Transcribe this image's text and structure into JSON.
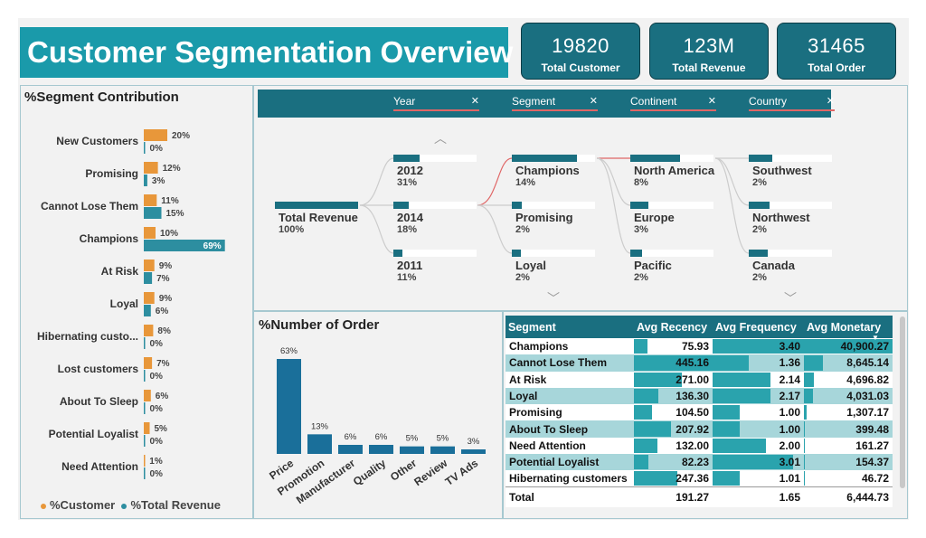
{
  "title": "Customer Segmentation Overview",
  "kpis": [
    {
      "value": "19820",
      "label": "Total Customer"
    },
    {
      "value": "123M",
      "label": "Total Revenue"
    },
    {
      "value": "31465",
      "label": "Total Order"
    }
  ],
  "segment_contribution": {
    "title": "%Segment Contribution",
    "legend": [
      "%Customer",
      "%Total Revenue"
    ],
    "colors": {
      "customer": "#e8973a",
      "revenue": "#2d8ea0"
    },
    "rows": [
      {
        "label": "New Customers",
        "customer": 20,
        "revenue": 0,
        "customer_label": "20%",
        "revenue_label": "0%"
      },
      {
        "label": "Promising",
        "customer": 12,
        "revenue": 3,
        "customer_label": "12%",
        "revenue_label": "3%"
      },
      {
        "label": "Cannot Lose Them",
        "customer": 11,
        "revenue": 15,
        "customer_label": "11%",
        "revenue_label": "15%"
      },
      {
        "label": "Champions",
        "customer": 10,
        "revenue": 69,
        "customer_label": "10%",
        "revenue_label": "69%"
      },
      {
        "label": "At Risk",
        "customer": 9,
        "revenue": 7,
        "customer_label": "9%",
        "revenue_label": "7%"
      },
      {
        "label": "Loyal",
        "customer": 9,
        "revenue": 6,
        "customer_label": "9%",
        "revenue_label": "6%"
      },
      {
        "label": "Hibernating custo...",
        "customer": 8,
        "revenue": 0,
        "customer_label": "8%",
        "revenue_label": "0%"
      },
      {
        "label": "Lost customers",
        "customer": 7,
        "revenue": 0,
        "customer_label": "7%",
        "revenue_label": "0%"
      },
      {
        "label": "About To Sleep",
        "customer": 6,
        "revenue": 0,
        "customer_label": "6%",
        "revenue_label": "0%"
      },
      {
        "label": "Potential Loyalist",
        "customer": 5,
        "revenue": 0,
        "customer_label": "5%",
        "revenue_label": "0%"
      },
      {
        "label": "Need Attention",
        "customer": 1,
        "revenue": 0,
        "customer_label": "1%",
        "revenue_label": "0%"
      }
    ]
  },
  "filters": [
    "Year",
    "Segment",
    "Continent",
    "Country"
  ],
  "decomposition_tree": {
    "root": {
      "name": "Total Revenue",
      "pct": "100%",
      "fill": 1.0
    },
    "year": [
      {
        "name": "2012",
        "pct": "31%",
        "fill": 0.31
      },
      {
        "name": "2014",
        "pct": "18%",
        "fill": 0.18
      },
      {
        "name": "2011",
        "pct": "11%",
        "fill": 0.11
      }
    ],
    "segment": [
      {
        "name": "Champions",
        "pct": "14%",
        "fill": 0.78
      },
      {
        "name": "Promising",
        "pct": "2%",
        "fill": 0.12
      },
      {
        "name": "Loyal",
        "pct": "2%",
        "fill": 0.11
      }
    ],
    "continent": [
      {
        "name": "North America",
        "pct": "8%",
        "fill": 0.6
      },
      {
        "name": "Europe",
        "pct": "3%",
        "fill": 0.22
      },
      {
        "name": "Pacific",
        "pct": "2%",
        "fill": 0.14
      }
    ],
    "country": [
      {
        "name": "Southwest",
        "pct": "2%",
        "fill": 0.28
      },
      {
        "name": "Northwest",
        "pct": "2%",
        "fill": 0.25
      },
      {
        "name": "Canada",
        "pct": "2%",
        "fill": 0.23
      }
    ]
  },
  "chart_data": {
    "type": "bar",
    "title": "%Number of Order",
    "categories": [
      "Price",
      "Promotion",
      "Manufacturer",
      "Quality",
      "Other",
      "Review",
      "TV Ads"
    ],
    "values": [
      63,
      13,
      6,
      6,
      5,
      5,
      3
    ],
    "value_labels": [
      "63%",
      "13%",
      "6%",
      "6%",
      "5%",
      "5%",
      "3%"
    ],
    "bar_color": "#1a6f9a",
    "ylim": [
      0,
      63
    ]
  },
  "segment_table": {
    "columns": [
      "Segment",
      "Avg Recency",
      "Avg Frequency",
      "Avg Monetary"
    ],
    "rows": [
      {
        "segment": "Champions",
        "recency": "75.93",
        "frequency": "3.40",
        "monetary": "40,900.27",
        "r": 75.93,
        "f": 3.4,
        "m": 40900.27
      },
      {
        "segment": "Cannot Lose Them",
        "recency": "445.16",
        "frequency": "1.36",
        "monetary": "8,645.14",
        "r": 445.16,
        "f": 1.36,
        "m": 8645.14
      },
      {
        "segment": "At Risk",
        "recency": "271.00",
        "frequency": "2.14",
        "monetary": "4,696.82",
        "r": 271.0,
        "f": 2.14,
        "m": 4696.82
      },
      {
        "segment": "Loyal",
        "recency": "136.30",
        "frequency": "2.17",
        "monetary": "4,031.03",
        "r": 136.3,
        "f": 2.17,
        "m": 4031.03
      },
      {
        "segment": "Promising",
        "recency": "104.50",
        "frequency": "1.00",
        "monetary": "1,307.17",
        "r": 104.5,
        "f": 1.0,
        "m": 1307.17
      },
      {
        "segment": "About To Sleep",
        "recency": "207.92",
        "frequency": "1.00",
        "monetary": "399.48",
        "r": 207.92,
        "f": 1.0,
        "m": 399.48
      },
      {
        "segment": "Need Attention",
        "recency": "132.00",
        "frequency": "2.00",
        "monetary": "161.27",
        "r": 132.0,
        "f": 2.0,
        "m": 161.27
      },
      {
        "segment": "Potential Loyalist",
        "recency": "82.23",
        "frequency": "3.01",
        "monetary": "154.37",
        "r": 82.23,
        "f": 3.01,
        "m": 154.37
      },
      {
        "segment": "Hibernating customers",
        "recency": "247.36",
        "frequency": "1.01",
        "monetary": "46.72",
        "r": 247.36,
        "f": 1.01,
        "m": 46.72
      }
    ],
    "total": {
      "segment": "Total",
      "recency": "191.27",
      "frequency": "1.65",
      "monetary": "6,444.73"
    }
  }
}
